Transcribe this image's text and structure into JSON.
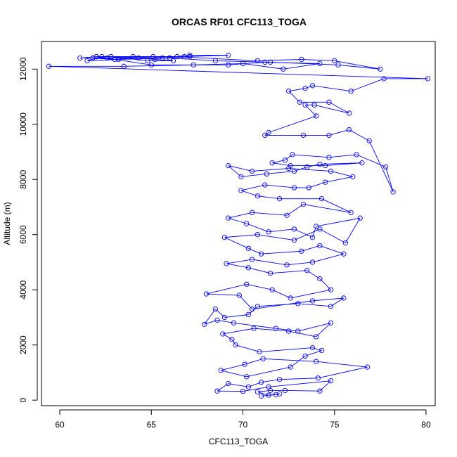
{
  "chart_data": {
    "type": "line",
    "title": "ORCAS RF01 CFC113_TOGA",
    "xlabel": "CFC113_TOGA",
    "ylabel": "Altitude (m)",
    "xlim": [
      59,
      80.5
    ],
    "ylim": [
      -200,
      13000
    ],
    "xticks": [
      60,
      65,
      70,
      75,
      80
    ],
    "yticks": [
      0,
      2000,
      4000,
      6000,
      8000,
      10000,
      12000
    ],
    "grid": false,
    "legend": "none",
    "marker": "open-circle",
    "color": "#0000ff",
    "series": [
      {
        "points": [
          [
            71.0,
            150
          ],
          [
            71.8,
            200
          ],
          [
            72.0,
            230
          ],
          [
            71.4,
            180
          ],
          [
            70.8,
            300
          ],
          [
            71.5,
            350
          ],
          [
            72.3,
            350
          ],
          [
            74.2,
            330
          ],
          [
            74.8,
            700
          ],
          [
            71.4,
            480
          ],
          [
            70.0,
            320
          ],
          [
            68.6,
            330
          ],
          [
            69.2,
            600
          ],
          [
            70.3,
            480
          ],
          [
            71.0,
            650
          ],
          [
            72.0,
            750
          ],
          [
            74.1,
            800
          ],
          [
            76.8,
            1200
          ],
          [
            74.0,
            1400
          ],
          [
            71.1,
            1500
          ],
          [
            70.1,
            1300
          ],
          [
            68.8,
            1080
          ],
          [
            70.2,
            850
          ],
          [
            72.6,
            1200
          ],
          [
            73.4,
            1600
          ],
          [
            74.3,
            1800
          ],
          [
            73.8,
            1900
          ],
          [
            70.9,
            1750
          ],
          [
            69.6,
            2000
          ],
          [
            69.4,
            2200
          ],
          [
            68.9,
            2400
          ],
          [
            70.6,
            2600
          ],
          [
            72.5,
            2500
          ],
          [
            74.0,
            2300
          ],
          [
            74.8,
            2800
          ],
          [
            73.0,
            2500
          ],
          [
            71.8,
            2600
          ],
          [
            69.5,
            2800
          ],
          [
            68.6,
            2900
          ],
          [
            67.9,
            2750
          ],
          [
            68.5,
            3300
          ],
          [
            69.0,
            3000
          ],
          [
            70.3,
            3100
          ],
          [
            70.8,
            3400
          ],
          [
            73.0,
            3500
          ],
          [
            74.8,
            3400
          ],
          [
            75.5,
            3700
          ],
          [
            73.8,
            3600
          ],
          [
            70.5,
            3300
          ],
          [
            69.8,
            3800
          ],
          [
            68.0,
            3850
          ],
          [
            70.2,
            4200
          ],
          [
            71.6,
            4000
          ],
          [
            72.6,
            3700
          ],
          [
            74.8,
            4000
          ],
          [
            74.2,
            4400
          ],
          [
            73.5,
            4700
          ],
          [
            71.5,
            4600
          ],
          [
            70.3,
            4800
          ],
          [
            69.1,
            4950
          ],
          [
            70.5,
            5100
          ],
          [
            72.4,
            4900
          ],
          [
            73.8,
            5000
          ],
          [
            75.5,
            5300
          ],
          [
            74.2,
            5600
          ],
          [
            73.2,
            5400
          ],
          [
            71.0,
            5300
          ],
          [
            70.3,
            5500
          ],
          [
            69.0,
            5900
          ],
          [
            70.8,
            6000
          ],
          [
            72.8,
            5800
          ],
          [
            74.2,
            6200
          ],
          [
            75.6,
            5700
          ],
          [
            76.4,
            6600
          ],
          [
            74.0,
            6300
          ],
          [
            73.8,
            5900
          ],
          [
            72.8,
            6200
          ],
          [
            71.4,
            6100
          ],
          [
            70.2,
            6400
          ],
          [
            69.2,
            6600
          ],
          [
            70.5,
            6800
          ],
          [
            72.4,
            6700
          ],
          [
            73.3,
            7100
          ],
          [
            75.9,
            6800
          ],
          [
            74.3,
            7300
          ],
          [
            72.0,
            7300
          ],
          [
            70.8,
            7400
          ],
          [
            69.9,
            7600
          ],
          [
            71.2,
            7800
          ],
          [
            72.8,
            7700
          ],
          [
            73.6,
            7700
          ],
          [
            74.5,
            7900
          ],
          [
            76.0,
            8100
          ],
          [
            74.8,
            8300
          ],
          [
            72.5,
            8400
          ],
          [
            70.5,
            8300
          ],
          [
            69.2,
            8500
          ],
          [
            69.9,
            8100
          ],
          [
            71.3,
            8200
          ],
          [
            72.8,
            8300
          ],
          [
            73.5,
            8450
          ],
          [
            74.2,
            8550
          ],
          [
            76.5,
            8600
          ],
          [
            74.5,
            8500
          ],
          [
            72.6,
            8500
          ],
          [
            71.6,
            8600
          ],
          [
            72.3,
            8700
          ],
          [
            72.7,
            8900
          ],
          [
            74.7,
            8800
          ],
          [
            76.2,
            8900
          ],
          [
            77.8,
            8450
          ],
          [
            78.2,
            7550
          ],
          [
            76.9,
            9400
          ],
          [
            75.8,
            9800
          ],
          [
            74.7,
            9600
          ],
          [
            73.3,
            9600
          ],
          [
            71.2,
            9600
          ],
          [
            71.4,
            9700
          ],
          [
            74.0,
            10300
          ],
          [
            73.4,
            10700
          ],
          [
            73.9,
            10700
          ],
          [
            75.8,
            10400
          ],
          [
            74.7,
            10800
          ],
          [
            73.1,
            10800
          ],
          [
            72.5,
            11200
          ],
          [
            73.4,
            11300
          ],
          [
            73.8,
            11400
          ],
          [
            75.9,
            11200
          ],
          [
            77.7,
            11650
          ],
          [
            80.1,
            11650
          ],
          [
            59.4,
            12100
          ],
          [
            63.5,
            12100
          ],
          [
            67.3,
            12150
          ],
          [
            70.0,
            12200
          ],
          [
            72.2,
            12000
          ],
          [
            74.2,
            12200
          ],
          [
            71.2,
            12250
          ],
          [
            69.2,
            12150
          ],
          [
            65.0,
            12150
          ],
          [
            62.0,
            12450
          ],
          [
            66.4,
            12450
          ],
          [
            70.8,
            12300
          ],
          [
            73.2,
            12350
          ],
          [
            75.0,
            12300
          ],
          [
            77.5,
            12000
          ],
          [
            75.2,
            12150
          ],
          [
            71.5,
            12250
          ],
          [
            68.5,
            12300
          ],
          [
            66.0,
            12400
          ],
          [
            63.2,
            12350
          ],
          [
            61.5,
            12300
          ],
          [
            62.3,
            12450
          ],
          [
            64.0,
            12450
          ],
          [
            66.8,
            12450
          ],
          [
            69.2,
            12500
          ],
          [
            67.1,
            12500
          ],
          [
            65.6,
            12400
          ],
          [
            62.0,
            12450
          ],
          [
            61.1,
            12400
          ],
          [
            62.6,
            12400
          ],
          [
            64.3,
            12400
          ],
          [
            65.2,
            12350
          ],
          [
            66.2,
            12300
          ],
          [
            64.8,
            12300
          ],
          [
            62.8,
            12450
          ],
          [
            61.8,
            12400
          ],
          [
            63.0,
            12350
          ],
          [
            65.1,
            12450
          ],
          [
            66.0,
            12400
          ],
          [
            67.1,
            12450
          ]
        ]
      }
    ]
  }
}
